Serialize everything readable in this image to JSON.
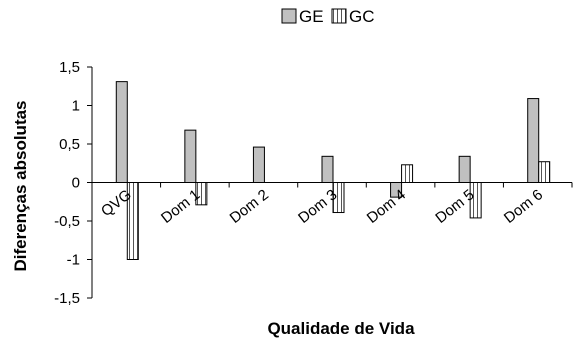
{
  "chart_data": {
    "type": "bar",
    "title": "",
    "xlabel": "Qualidade de Vida",
    "ylabel": "Diferenças absolutas",
    "ylim": [
      -1.5,
      1.5
    ],
    "yticks": [
      "1,5",
      "1",
      "0,5",
      "0",
      "-0,5",
      "-1",
      "-1,5"
    ],
    "ytick_values": [
      1.5,
      1,
      0.5,
      0,
      -0.5,
      -1,
      -1.5
    ],
    "categories": [
      "QVG",
      "Dom 1",
      "Dom 2",
      "Dom 3",
      "Dom 4",
      "Dom 5",
      "Dom 6"
    ],
    "series": [
      {
        "name": "GE",
        "values": [
          1.31,
          0.68,
          0.46,
          0.34,
          -0.19,
          0.34,
          1.09
        ]
      },
      {
        "name": "GC",
        "values": [
          -1.0,
          -0.29,
          0.0,
          -0.39,
          0.23,
          -0.46,
          0.27
        ]
      }
    ],
    "legend_position": "top",
    "grid": false
  },
  "colors": {
    "ge_fill": "#c0c0c0",
    "gc_fill": "#ffffff",
    "gc_stripe": "#555555",
    "axis": "#000000"
  }
}
